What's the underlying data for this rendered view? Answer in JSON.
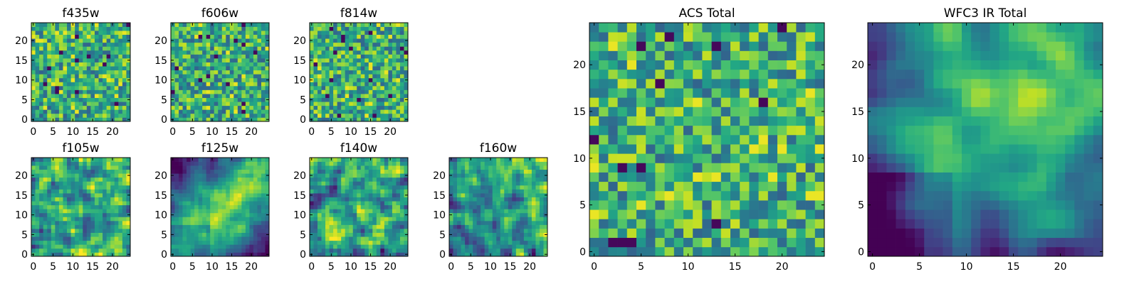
{
  "chart_data": [
    {
      "type": "heatmap",
      "title": "f435w",
      "colormap": "viridis",
      "grid_size": [
        25,
        25
      ],
      "xticks": [
        "0",
        "5",
        "10",
        "15",
        "20"
      ],
      "yticks": [
        "0",
        "5",
        "10",
        "15",
        "20"
      ],
      "xlim": [
        -0.5,
        24.5
      ],
      "ylim": [
        -0.5,
        24.5
      ],
      "texture": "noise",
      "seed": 11
    },
    {
      "type": "heatmap",
      "title": "f606w",
      "colormap": "viridis",
      "grid_size": [
        25,
        25
      ],
      "xticks": [
        "0",
        "5",
        "10",
        "15",
        "20"
      ],
      "yticks": [
        "0",
        "5",
        "10",
        "15",
        "20"
      ],
      "xlim": [
        -0.5,
        24.5
      ],
      "ylim": [
        -0.5,
        24.5
      ],
      "texture": "noise",
      "seed": 23
    },
    {
      "type": "heatmap",
      "title": "f814w",
      "colormap": "viridis",
      "grid_size": [
        25,
        25
      ],
      "xticks": [
        "0",
        "5",
        "10",
        "15",
        "20"
      ],
      "yticks": [
        "0",
        "5",
        "10",
        "15",
        "20"
      ],
      "xlim": [
        -0.5,
        24.5
      ],
      "ylim": [
        -0.5,
        24.5
      ],
      "texture": "noise",
      "seed": 37
    },
    {
      "type": "heatmap",
      "title": "f105w",
      "colormap": "viridis",
      "grid_size": [
        25,
        25
      ],
      "xticks": [
        "0",
        "5",
        "10",
        "15",
        "20"
      ],
      "yticks": [
        "0",
        "5",
        "10",
        "15",
        "20"
      ],
      "xlim": [
        -0.5,
        24.5
      ],
      "ylim": [
        -0.5,
        24.5
      ],
      "texture": "blotchy",
      "seed": 41
    },
    {
      "type": "heatmap",
      "title": "f125w",
      "colormap": "viridis",
      "grid_size": [
        25,
        25
      ],
      "xticks": [
        "0",
        "5",
        "10",
        "15",
        "20"
      ],
      "yticks": [
        "0",
        "5",
        "10",
        "15",
        "20"
      ],
      "xlim": [
        -0.5,
        24.5
      ],
      "ylim": [
        -0.5,
        24.5
      ],
      "texture": "diagonal-gradient",
      "seed": 53
    },
    {
      "type": "heatmap",
      "title": "f140w",
      "colormap": "viridis",
      "grid_size": [
        25,
        25
      ],
      "xticks": [
        "0",
        "5",
        "10",
        "15",
        "20"
      ],
      "yticks": [
        "0",
        "5",
        "10",
        "15",
        "20"
      ],
      "xlim": [
        -0.5,
        24.5
      ],
      "ylim": [
        -0.5,
        24.5
      ],
      "texture": "blotchy",
      "seed": 67
    },
    {
      "type": "heatmap",
      "title": "f160w",
      "colormap": "viridis",
      "grid_size": [
        25,
        25
      ],
      "xticks": [
        "0",
        "5",
        "10",
        "15",
        "20"
      ],
      "yticks": [
        "0",
        "5",
        "10",
        "15",
        "20"
      ],
      "xlim": [
        -0.5,
        24.5
      ],
      "ylim": [
        -0.5,
        24.5
      ],
      "texture": "blotchy-gradient",
      "seed": 79
    },
    {
      "type": "heatmap",
      "title": "ACS Total",
      "colormap": "viridis",
      "grid_size": [
        25,
        25
      ],
      "xticks": [
        "0",
        "5",
        "10",
        "15",
        "20"
      ],
      "yticks": [
        "0",
        "5",
        "10",
        "15",
        "20"
      ],
      "xlim": [
        -0.5,
        24.5
      ],
      "ylim": [
        -0.5,
        24.5
      ],
      "texture": "noise",
      "seed": 97
    },
    {
      "type": "heatmap",
      "title": "WFC3 IR Total",
      "colormap": "viridis",
      "grid_size": [
        25,
        25
      ],
      "xticks": [
        "0",
        "5",
        "10",
        "15",
        "20"
      ],
      "yticks": [
        "0",
        "5",
        "10",
        "15",
        "20"
      ],
      "xlim": [
        -0.5,
        24.5
      ],
      "ylim": [
        -0.5,
        24.5
      ],
      "texture": "smooth-gradient",
      "seed": 101
    }
  ]
}
